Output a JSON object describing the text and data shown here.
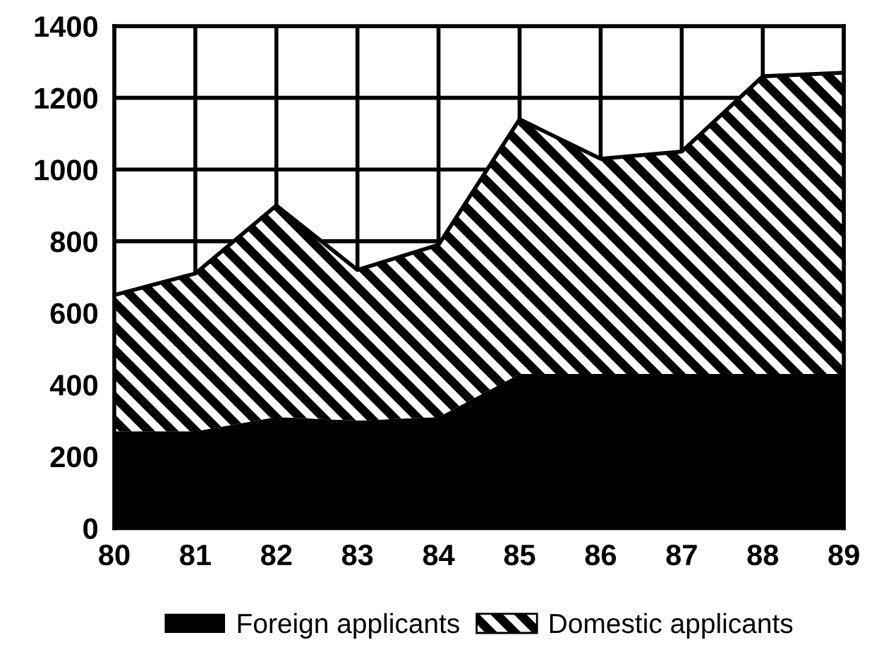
{
  "chart_data": {
    "type": "area",
    "stacked": true,
    "categories": [
      "80",
      "81",
      "82",
      "83",
      "84",
      "85",
      "86",
      "87",
      "88",
      "89"
    ],
    "series": [
      {
        "name": "Foreign applicants",
        "color": "#000000",
        "values": [
          270,
          270,
          310,
          300,
          310,
          430,
          430,
          430,
          430,
          430
        ]
      },
      {
        "name": "Domestic applicants",
        "color": "#000000",
        "values": [
          380,
          440,
          590,
          420,
          480,
          710,
          600,
          620,
          830,
          840
        ]
      }
    ],
    "ylim": [
      0,
      1400
    ],
    "yticks": [
      0,
      200,
      400,
      600,
      800,
      1000,
      1200,
      1400
    ],
    "grid": true,
    "legend": "bottom"
  }
}
